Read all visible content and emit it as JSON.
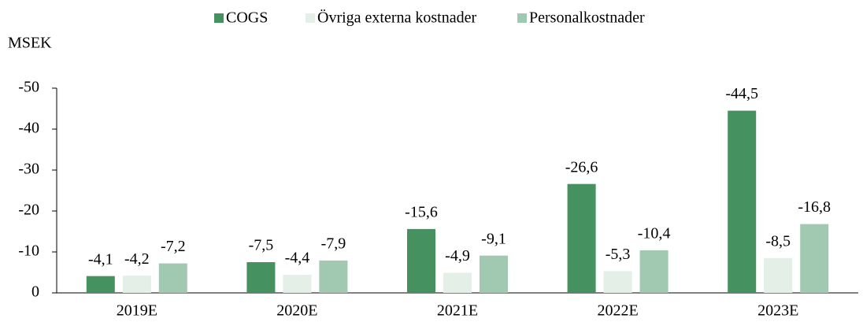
{
  "chart_data": {
    "type": "bar",
    "y_label": "MSEK",
    "categories": [
      "2019E",
      "2020E",
      "2021E",
      "2022E",
      "2023E"
    ],
    "series": [
      {
        "name": "COGS",
        "color": "#45915f",
        "values": [
          -4.1,
          -7.5,
          -15.6,
          -26.6,
          -44.5
        ],
        "value_labels": [
          "-4,1",
          "-7,5",
          "-15,6",
          "-26,6",
          "-44,5"
        ]
      },
      {
        "name": "Övriga externa kostnader",
        "color": "#e3efe7",
        "values": [
          -4.2,
          -4.4,
          -4.9,
          -5.3,
          -8.5
        ],
        "value_labels": [
          "-4,2",
          "-4,4",
          "-4,9",
          "-5,3",
          "-8,5"
        ]
      },
      {
        "name": "Personalkostnader",
        "color": "#a1c8b0",
        "values": [
          -7.2,
          -7.9,
          -9.1,
          -10.4,
          -16.8
        ],
        "value_labels": [
          "-7,2",
          "-7,9",
          "-9,1",
          "-10,4",
          "-16,8"
        ]
      }
    ],
    "ylim": [
      0,
      -55
    ],
    "yticks": [
      0,
      -10,
      -20,
      -30,
      -40,
      -50
    ],
    "legend": "top",
    "grid": false
  }
}
